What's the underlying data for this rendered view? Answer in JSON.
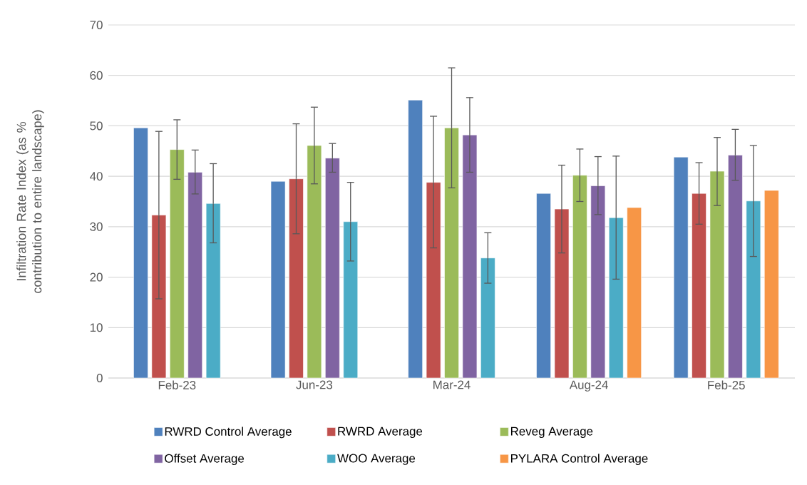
{
  "chart_data": {
    "type": "bar",
    "ylabel": "Infiltration Rate Index (as % contribution to entire landscape)",
    "categories": [
      "Feb-23",
      "Jun-23",
      "Mar-24",
      "Aug-24",
      "Feb-25"
    ],
    "series": [
      {
        "name": "RWRD Control Average",
        "color": "#4f81bd",
        "values": [
          49.6,
          39.0,
          55.1,
          36.6,
          43.8
        ]
      },
      {
        "name": "RWRD Average",
        "color": "#c0504d",
        "values": [
          32.3,
          39.5,
          38.8,
          33.5,
          36.6
        ],
        "errors": [
          [
            15.7,
            48.9
          ],
          [
            28.6,
            50.4
          ],
          [
            25.8,
            51.9
          ],
          [
            24.8,
            42.2
          ],
          [
            30.5,
            42.7
          ]
        ]
      },
      {
        "name": "Reveg Average",
        "color": "#9bbb59",
        "values": [
          45.3,
          46.1,
          49.6,
          40.2,
          41.0
        ],
        "errors": [
          [
            39.4,
            51.2
          ],
          [
            38.5,
            53.7
          ],
          [
            37.7,
            61.5
          ],
          [
            35.0,
            45.4
          ],
          [
            34.2,
            47.7
          ]
        ]
      },
      {
        "name": "Offset Average",
        "color": "#8064a2",
        "values": [
          40.8,
          43.6,
          48.2,
          38.1,
          44.2
        ],
        "errors": [
          [
            36.5,
            45.2
          ],
          [
            40.8,
            46.5
          ],
          [
            40.8,
            55.6
          ],
          [
            32.4,
            43.9
          ],
          [
            39.2,
            49.3
          ]
        ]
      },
      {
        "name": "WOO Average",
        "color": "#4bacc6",
        "values": [
          34.6,
          31.0,
          23.8,
          31.8,
          35.1
        ],
        "errors": [
          [
            26.8,
            42.5
          ],
          [
            23.2,
            38.8
          ],
          [
            18.8,
            28.8
          ],
          [
            19.6,
            44.0
          ],
          [
            24.1,
            46.1
          ]
        ]
      },
      {
        "name": "PYLARA Control Average",
        "color": "#f79646",
        "values": [
          null,
          null,
          null,
          33.8,
          37.2
        ]
      }
    ],
    "ylim": [
      0,
      70
    ],
    "yticks": [
      0,
      10,
      20,
      30,
      40,
      50,
      60,
      70
    ],
    "grid": "y",
    "legend": "bottom"
  }
}
